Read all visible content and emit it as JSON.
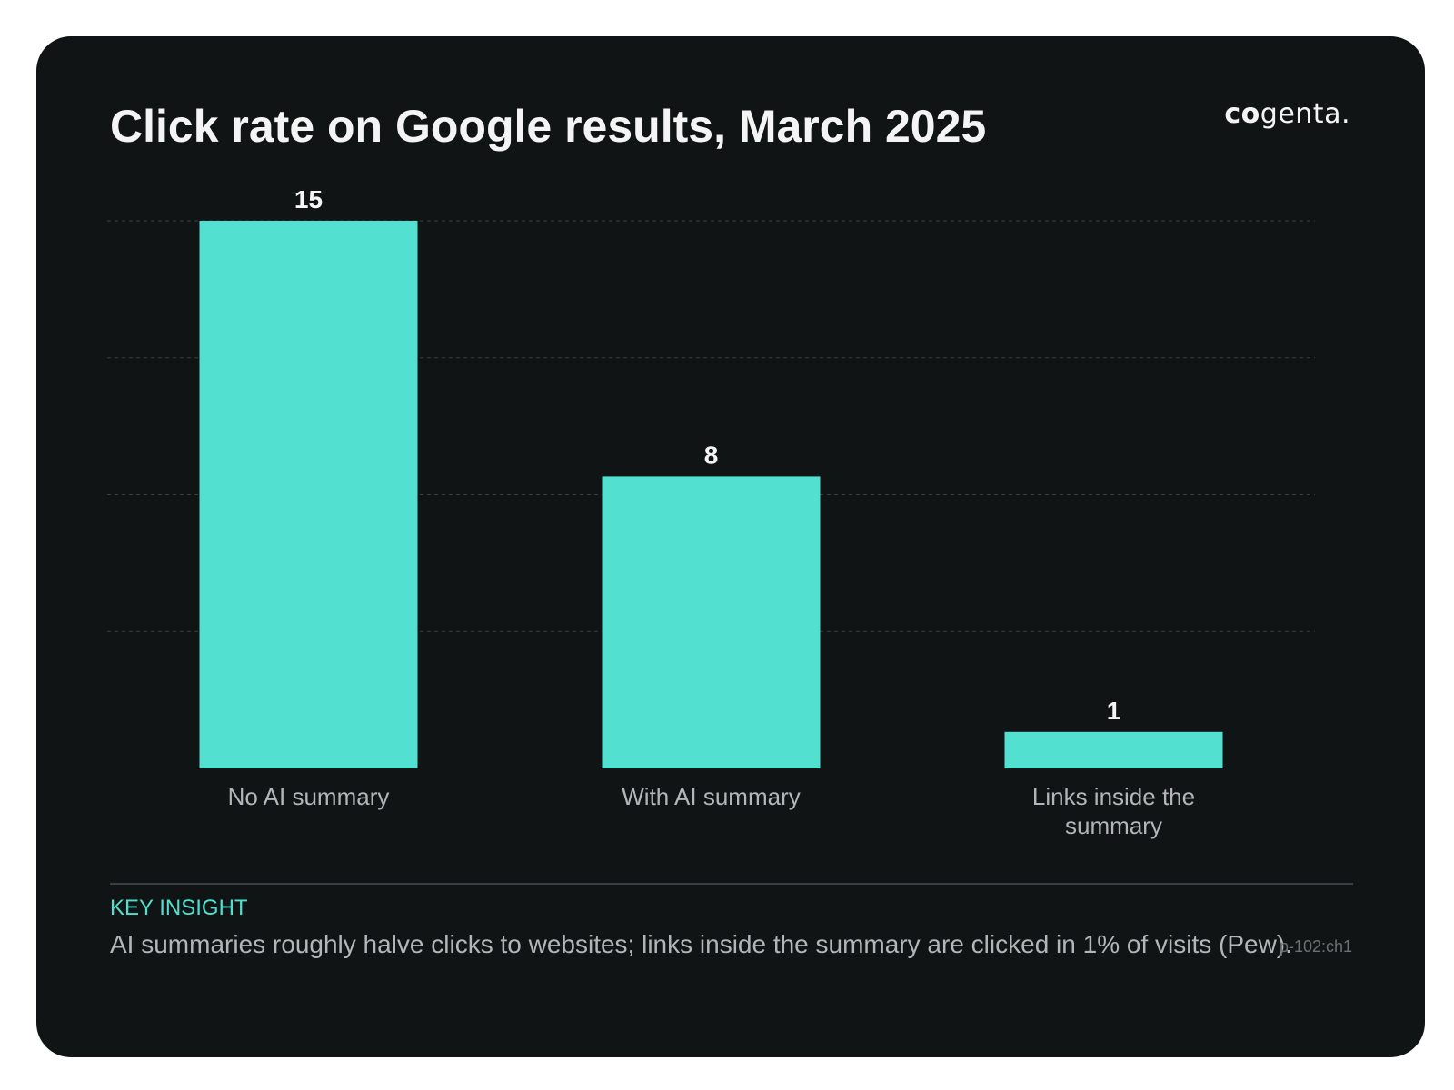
{
  "card": {
    "background": "#111415",
    "accent": "#52e0d1"
  },
  "header": {
    "title": "Click rate on Google results, March 2025",
    "logo_strong": "co",
    "logo_light": "genta."
  },
  "chart_data": {
    "type": "bar",
    "title": "Click rate on Google results, March 2025",
    "xlabel": "",
    "ylabel": "",
    "categories": [
      [
        "No AI summary"
      ],
      [
        "With AI summary"
      ],
      [
        "Links inside the",
        "summary"
      ]
    ],
    "values": [
      15,
      8,
      1
    ],
    "ylim": [
      0,
      15
    ],
    "grid": true,
    "bar_color": "#52e0d1",
    "value_label_color": "#f4f4f4",
    "category_label_color": "#b3b6b8",
    "grid_color": "#3a3f41"
  },
  "insight": {
    "label": "KEY INSIGHT",
    "text": "AI summaries roughly halve clicks to websites; links inside the summary are clicked in 1% of visits (Pew).",
    "ref": "p-102:ch1"
  }
}
